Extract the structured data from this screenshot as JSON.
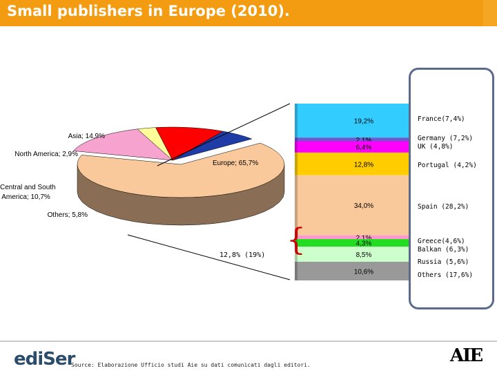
{
  "title": "Small publishers in Europe (2010).",
  "footer": {
    "logo": "ediSer",
    "source": "Source: Elaborazione Ufficio studi Aie su dati comunicati dagli editori.",
    "brand": "AIE"
  },
  "bracket_label": "12,8% (19%)",
  "chart_data": [
    {
      "type": "pie",
      "style": "3d-exploded",
      "slices": [
        {
          "label": "Europe; 65,7%",
          "value": 65.7,
          "color": "#f9c89b"
        },
        {
          "label": "Asia; 14,9%",
          "value": 14.9,
          "color": "#f7a3cf"
        },
        {
          "label": "North America; 2,9%",
          "value": 2.9,
          "color": "#ffff99"
        },
        {
          "label": "Central and South America; 10,7%",
          "value": 10.7,
          "color": "#ff0000"
        },
        {
          "label": "Others; 5,8%",
          "value": 5.8,
          "color": "#1f3ca6"
        }
      ]
    },
    {
      "type": "bar",
      "style": "stacked-100",
      "segments": [
        {
          "value_label": "19,2%",
          "value": 19.2,
          "name": "France(7,4%)",
          "color": "#33ccff"
        },
        {
          "value_label": "2,1%",
          "value": 2.1,
          "name": "Germany (7,2%)",
          "color": "#6a5acd"
        },
        {
          "value_label": "6,4%",
          "value": 6.4,
          "name": "UK (4,8%)",
          "color": "#ff00ff"
        },
        {
          "value_label": "12,8%",
          "value": 12.8,
          "name": "Portugal (4,2%)",
          "color": "#ffcc00"
        },
        {
          "value_label": "34,0%",
          "value": 34.0,
          "name": "Spain (28,2%)",
          "color": "#f9c89b"
        },
        {
          "value_label": "2,1%",
          "value": 2.1,
          "name": "Greece(4,6%)",
          "color": "#ff99cc"
        },
        {
          "value_label": "4,3%",
          "value": 4.3,
          "name": "Balkan (6,3%)",
          "color": "#22dd22"
        },
        {
          "value_label": "8,5%",
          "value": 8.5,
          "name": "Russia (5,6%)",
          "color": "#ccffcc"
        },
        {
          "value_label": "10,6%",
          "value": 10.6,
          "name": "Others (17,6%)",
          "color": "#999999"
        }
      ]
    }
  ]
}
